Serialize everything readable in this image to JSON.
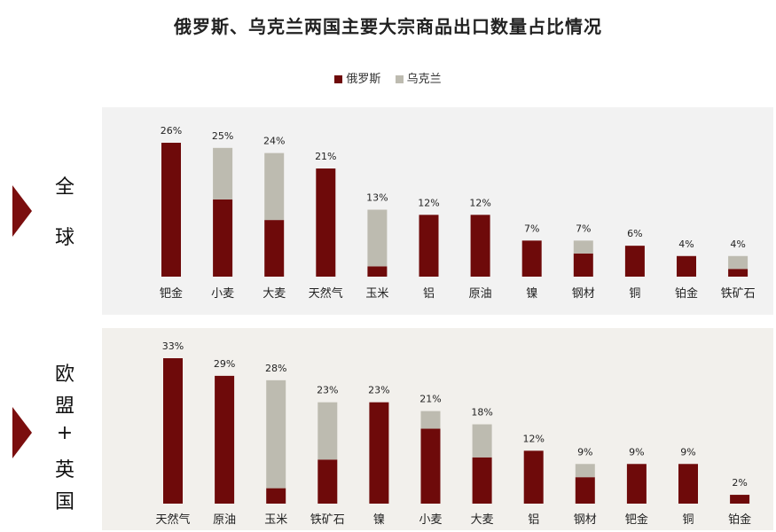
{
  "title": "俄罗斯、乌克兰两国主要大宗商品出口数量占比情况",
  "colors": {
    "russia": "#6e0a0a",
    "ukraine": "#bdbbb0"
  },
  "legend": [
    {
      "name": "俄罗斯",
      "color": "#6e0a0a"
    },
    {
      "name": "乌克兰",
      "color": "#bdbbb0"
    }
  ],
  "chart_data": [
    {
      "type": "bar",
      "stacked": true,
      "region_label": [
        "全",
        "球"
      ],
      "categories": [
        "钯金",
        "小麦",
        "大麦",
        "天然气",
        "玉米",
        "铝",
        "原油",
        "镍",
        "钢材",
        "铜",
        "铂金",
        "铁矿石"
      ],
      "totals_labels": [
        "26%",
        "25%",
        "24%",
        "21%",
        "13%",
        "12%",
        "12%",
        "7%",
        "7%",
        "6%",
        "4%",
        "4%"
      ],
      "totals": [
        26,
        25,
        24,
        21,
        13,
        12,
        12,
        7,
        7,
        6,
        4,
        4
      ],
      "series": [
        {
          "name": "俄罗斯",
          "values": [
            26,
            15,
            11,
            21,
            2,
            12,
            12,
            7,
            4.5,
            6,
            4,
            1.5
          ]
        },
        {
          "name": "乌克兰",
          "values": [
            0,
            10,
            13,
            0,
            11,
            0,
            0,
            0,
            2.5,
            0,
            0,
            2.5
          ]
        }
      ],
      "ylim": [
        0,
        26
      ]
    },
    {
      "type": "bar",
      "stacked": true,
      "region_label": [
        "欧",
        "盟",
        "+",
        "英",
        "国"
      ],
      "categories": [
        "天然气",
        "原油",
        "玉米",
        "铁矿石",
        "镍",
        "小麦",
        "大麦",
        "铝",
        "钢材",
        "钯金",
        "铜",
        "铂金"
      ],
      "totals_labels": [
        "33%",
        "29%",
        "28%",
        "23%",
        "23%",
        "21%",
        "18%",
        "12%",
        "9%",
        "9%",
        "9%",
        "2%"
      ],
      "totals": [
        33,
        29,
        28,
        23,
        23,
        21,
        18,
        12,
        9,
        9,
        9,
        2
      ],
      "series": [
        {
          "name": "俄罗斯",
          "values": [
            33,
            29,
            3.5,
            10,
            23,
            17,
            10.5,
            12,
            6,
            9,
            9,
            2
          ]
        },
        {
          "name": "乌克兰",
          "values": [
            0,
            0,
            24.5,
            13,
            0,
            4,
            7.5,
            0,
            3,
            0,
            0,
            0
          ]
        }
      ],
      "ylim": [
        0,
        33
      ]
    }
  ]
}
